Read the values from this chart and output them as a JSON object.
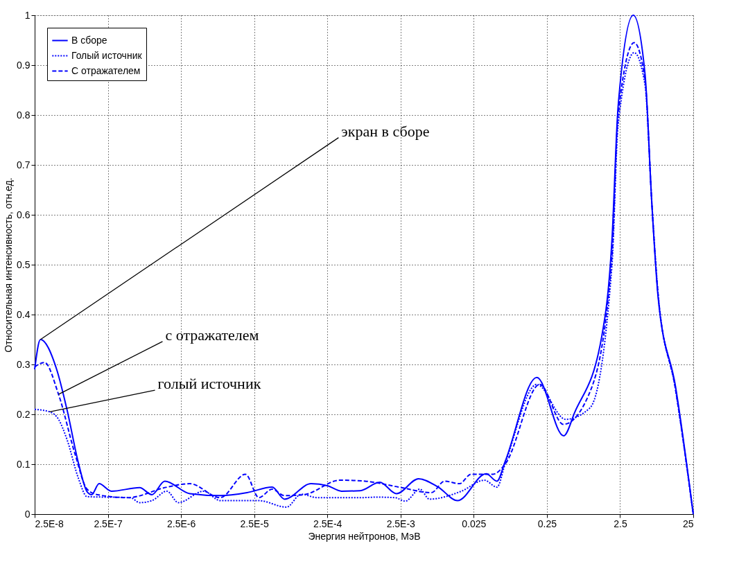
{
  "chart_data": {
    "type": "line",
    "xlabel": "Энергия нейтронов, МэВ",
    "ylabel": "Относительная интенсивность, отн.ед.",
    "log": "x",
    "xlim": [
      2.5e-08,
      25
    ],
    "ylim": [
      0,
      1
    ],
    "xticks": [
      {
        "value": 2.5e-08,
        "label": "2.5E-8"
      },
      {
        "value": 2.5e-07,
        "label": "2.5E-7"
      },
      {
        "value": 2.5e-06,
        "label": "2.5E-6"
      },
      {
        "value": 2.5e-05,
        "label": "2.5E-5"
      },
      {
        "value": 0.00025,
        "label": "2.5E-4"
      },
      {
        "value": 0.0025,
        "label": "2.5E-3"
      },
      0.025,
      0.25,
      2.5,
      25
    ],
    "yticks": [
      0,
      0.1,
      0.2,
      0.3,
      0.4,
      0.5,
      0.6,
      0.7,
      0.8,
      0.9,
      1
    ],
    "grid": true,
    "legend": "top left",
    "marker": "none",
    "series": [
      {
        "name": "В сборе",
        "color": "#0000ff",
        "line_style": "solid",
        "x": [
          2.5e-08,
          3e-08,
          5e-08,
          6.9e-08,
          1e-07,
          1.3e-07,
          1.5e-07,
          1.9e-07,
          2.8e-07,
          6.8e-07,
          1e-06,
          1.5e-06,
          3.3e-06,
          8.6e-06,
          2e-05,
          4.4e-05,
          6.5e-05,
          0.00015,
          0.00025,
          0.00039,
          0.0007,
          0.0013,
          0.0022,
          0.0044,
          0.0082,
          0.015,
          0.037,
          0.052,
          0.067,
          0.182,
          0.424,
          0.6,
          1.4,
          1.94,
          2.35,
          3.79,
          5.48,
          6.81,
          8.28,
          14.3,
          25
        ],
        "values": [
          0.29,
          0.35,
          0.29,
          0.21,
          0.1,
          0.045,
          0.039,
          0.061,
          0.046,
          0.053,
          0.039,
          0.066,
          0.041,
          0.037,
          0.043,
          0.054,
          0.03,
          0.061,
          0.057,
          0.046,
          0.047,
          0.064,
          0.041,
          0.071,
          0.054,
          0.027,
          0.081,
          0.066,
          0.105,
          0.274,
          0.157,
          0.204,
          0.355,
          0.552,
          0.817,
          1.0,
          0.882,
          0.619,
          0.434,
          0.256,
          0.0
        ]
      },
      {
        "name": "Голый источник",
        "color": "#0000ff",
        "line_style": "dotted",
        "x": [
          2.5e-08,
          4e-08,
          5.3e-08,
          6.9e-08,
          1e-07,
          1.3e-07,
          5.1e-07,
          6.8e-07,
          1e-06,
          1.6e-06,
          2.3e-06,
          5.1e-06,
          8.6e-06,
          2.9e-05,
          6.9e-05,
          0.00011,
          0.00018,
          0.0003,
          0.0007,
          0.0012,
          0.0021,
          0.0029,
          0.0046,
          0.0062,
          0.017,
          0.035,
          0.052,
          0.067,
          0.182,
          0.45,
          0.97,
          1.94,
          2.35,
          3.9,
          5.48,
          6.81,
          8.28,
          14.3,
          25
        ],
        "values": [
          0.21,
          0.205,
          0.19,
          0.15,
          0.07,
          0.035,
          0.033,
          0.023,
          0.027,
          0.046,
          0.023,
          0.046,
          0.027,
          0.027,
          0.014,
          0.04,
          0.033,
          0.033,
          0.033,
          0.034,
          0.033,
          0.026,
          0.05,
          0.03,
          0.046,
          0.068,
          0.054,
          0.1,
          0.26,
          0.19,
          0.213,
          0.5,
          0.78,
          0.925,
          0.86,
          0.62,
          0.44,
          0.25,
          0.0
        ]
      },
      {
        "name": "С отражателем",
        "color": "#0000ff",
        "line_style": "dashed",
        "x": [
          2.5e-08,
          3.4e-08,
          5.3e-08,
          9e-08,
          1.3e-07,
          1.8e-07,
          4.7e-07,
          1.6e-06,
          3.3e-06,
          8.6e-06,
          1.9e-05,
          2.9e-05,
          4.4e-05,
          6.5e-05,
          0.00012,
          0.00037,
          0.00082,
          0.0024,
          0.0066,
          0.01,
          0.016,
          0.023,
          0.046,
          0.067,
          0.2,
          0.42,
          1.0,
          1.94,
          2.35,
          3.9,
          5.48,
          6.81,
          8.28,
          14.3,
          25
        ],
        "values": [
          0.295,
          0.304,
          0.24,
          0.118,
          0.05,
          0.039,
          0.033,
          0.054,
          0.061,
          0.033,
          0.08,
          0.033,
          0.05,
          0.037,
          0.039,
          0.068,
          0.066,
          0.054,
          0.043,
          0.066,
          0.061,
          0.08,
          0.08,
          0.1,
          0.26,
          0.18,
          0.25,
          0.52,
          0.8,
          0.945,
          0.87,
          0.62,
          0.44,
          0.25,
          0.0
        ]
      }
    ],
    "annotations": [
      {
        "text": "экран в сборе",
        "x": 3e-08,
        "y": 0.35
      },
      {
        "text": "с отражателем",
        "x": 5.3e-08,
        "y": 0.24
      },
      {
        "text": "голый источник",
        "x": 4e-08,
        "y": 0.205
      }
    ]
  }
}
